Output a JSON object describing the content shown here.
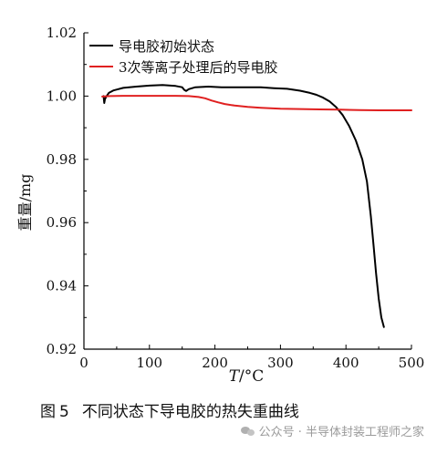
{
  "chart_data": {
    "type": "line",
    "xlabel_italic": "T",
    "xlabel_unit": "/°C",
    "ylabel": "重量/mg",
    "xlim": [
      0,
      500
    ],
    "ylim": [
      0.92,
      1.02
    ],
    "x_ticks": [
      0,
      100,
      200,
      300,
      400,
      500
    ],
    "y_ticks": [
      0.92,
      0.94,
      0.96,
      0.98,
      1.0,
      1.02
    ],
    "y_tick_labels": [
      "0.92",
      "0.94",
      "0.96",
      "0.98",
      "1.00",
      "1.02"
    ],
    "legend_position": "top-left",
    "grid": false,
    "series": [
      {
        "name": "导电胶初始状态",
        "color": "#000000",
        "x": [
          30,
          31,
          32,
          34,
          38,
          45,
          60,
          80,
          100,
          120,
          140,
          150,
          153,
          156,
          160,
          170,
          190,
          210,
          230,
          250,
          270,
          290,
          310,
          330,
          345,
          355,
          365,
          375,
          385,
          395,
          405,
          415,
          425,
          432,
          438,
          442,
          446,
          450,
          454,
          458
        ],
        "y": [
          1.0,
          0.9978,
          0.999,
          0.9998,
          1.001,
          1.0018,
          1.0026,
          1.003,
          1.0033,
          1.0035,
          1.0032,
          1.0028,
          1.002,
          1.0016,
          1.0022,
          1.0028,
          1.003,
          1.0028,
          1.0028,
          1.0028,
          1.0028,
          1.0025,
          1.0023,
          1.0017,
          1.001,
          1.0004,
          0.9995,
          0.9983,
          0.9965,
          0.994,
          0.9905,
          0.986,
          0.98,
          0.973,
          0.962,
          0.953,
          0.944,
          0.936,
          0.93,
          0.927
        ]
      },
      {
        "name": "3次等离子处理后的导电胶",
        "color": "#e02020",
        "x": [
          28,
          40,
          60,
          80,
          100,
          120,
          140,
          160,
          175,
          185,
          195,
          205,
          215,
          230,
          250,
          270,
          300,
          330,
          360,
          390,
          420,
          450,
          500
        ],
        "y": [
          0.99985,
          1.0,
          1.0001,
          1.0001,
          1.0001,
          1.0001,
          1.0001,
          1.0,
          0.9997,
          0.9993,
          0.9986,
          0.998,
          0.9975,
          0.997,
          0.9966,
          0.9963,
          0.996,
          0.9959,
          0.9958,
          0.9957,
          0.9956,
          0.9955,
          0.9955
        ]
      }
    ]
  },
  "caption": {
    "label": "图",
    "number": "5",
    "text": "不同状态下导电胶的热失重曲线"
  },
  "watermark": {
    "text": "公众号 · 半导体封装工程师之家"
  }
}
